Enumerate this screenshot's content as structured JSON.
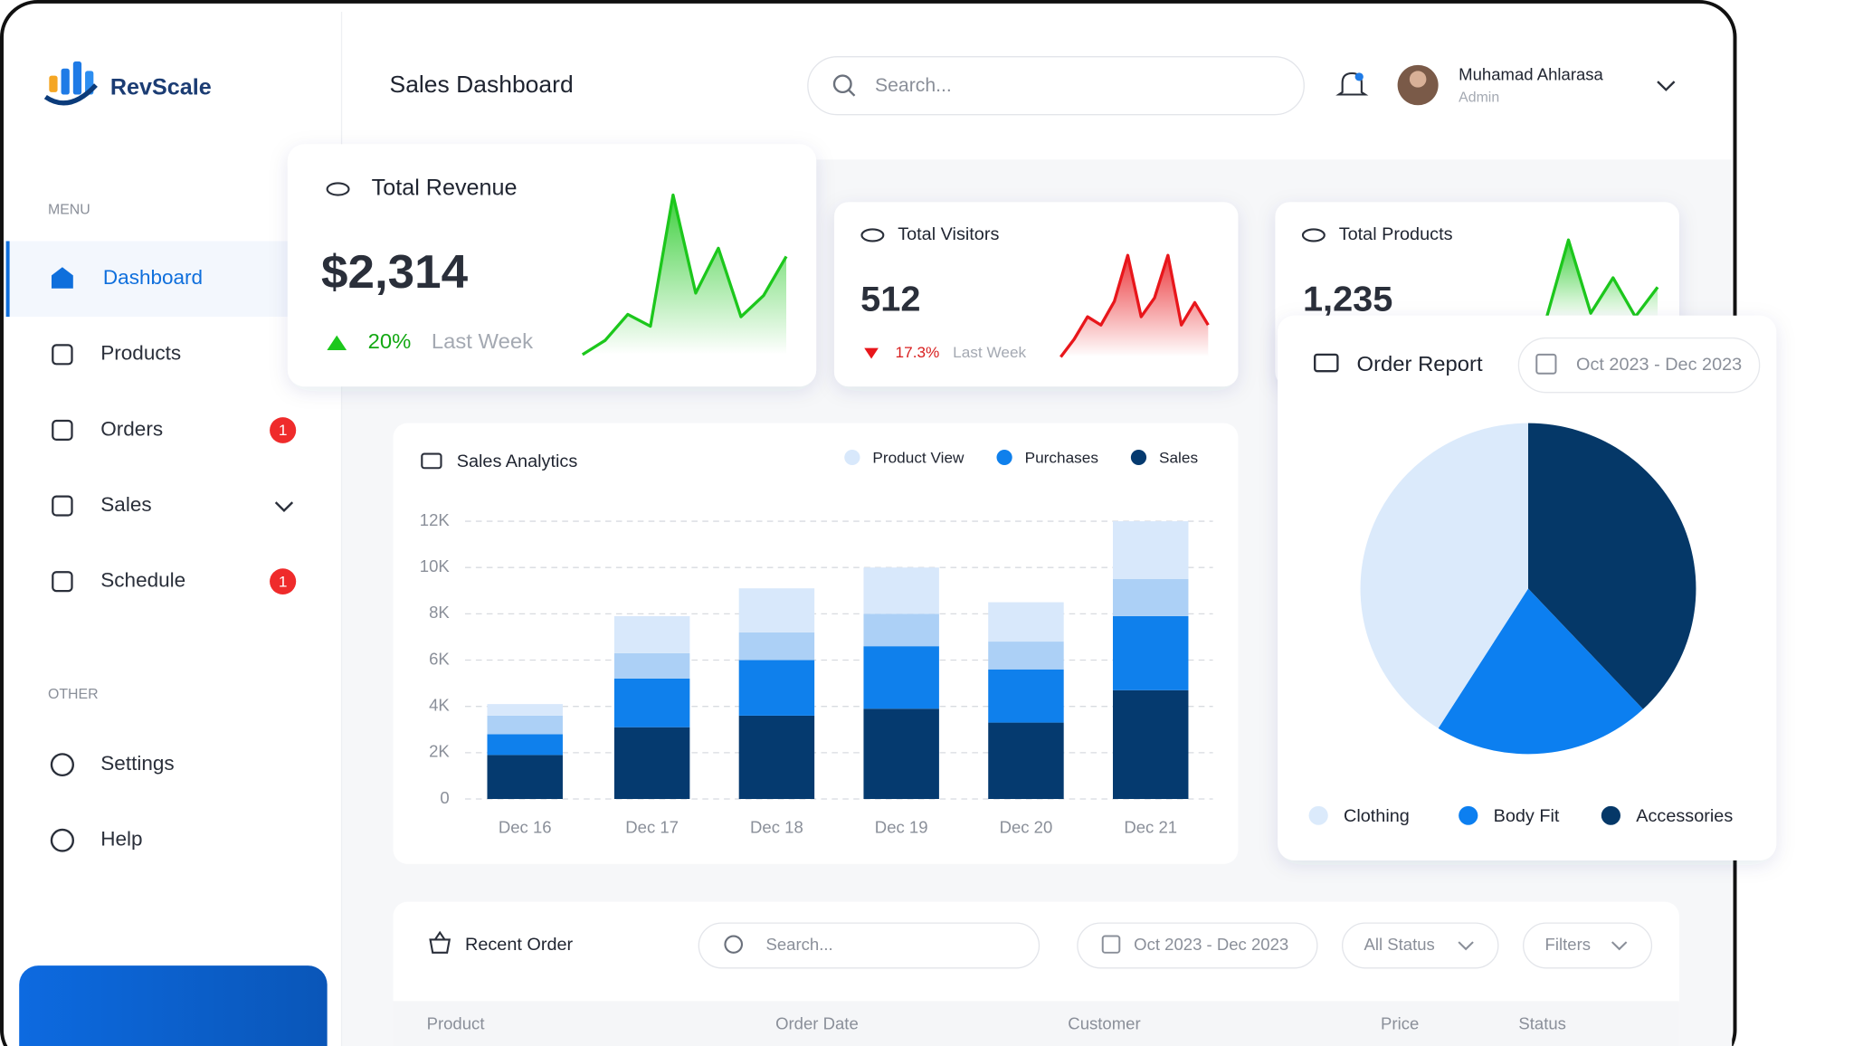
{
  "brand": "RevScale",
  "header": {
    "title": "Sales Dashboard",
    "search_placeholder": "Search...",
    "user_name": "Muhamad Ahlarasa",
    "user_role": "Admin"
  },
  "sidebar": {
    "menu_label": "MENU",
    "items": [
      {
        "label": "Dashboard"
      },
      {
        "label": "Products"
      },
      {
        "label": "Orders",
        "badge": 1
      },
      {
        "label": "Sales"
      },
      {
        "label": "Schedule",
        "badge": 1
      }
    ],
    "other_label": "OTHER",
    "other_items": [
      "Settings",
      "Help"
    ]
  },
  "stats": [
    {
      "title": "Total Revenue",
      "value": "$2,314",
      "change": "20%",
      "trend": "up",
      "period": "Last Week",
      "color": "#1cc71c",
      "spark": [
        0,
        12,
        34,
        24,
        135,
        52,
        90,
        32,
        50,
        83
      ]
    },
    {
      "title": "Total Visitors",
      "value": "512",
      "change": "17.3%",
      "trend": "down",
      "period": "Last Week",
      "color": "#e8161b",
      "spark": [
        0,
        15,
        34,
        27,
        47,
        86,
        34,
        50,
        86,
        27,
        46,
        27
      ]
    },
    {
      "title": "Total Products",
      "value": "1,235",
      "color": "#1cc71c",
      "spark": [
        0,
        67,
        5,
        35,
        2,
        27
      ]
    }
  ],
  "chart_data": [
    {
      "type": "bar",
      "title": "Sales Analytics",
      "stacked": true,
      "categories": [
        "Dec 16",
        "Dec 17",
        "Dec 18",
        "Dec 19",
        "Dec 20",
        "Dec 21"
      ],
      "series": [
        {
          "name": "Sales",
          "color": "#053a6f",
          "values": [
            1900,
            3100,
            3600,
            3900,
            3300,
            4700
          ]
        },
        {
          "name": "Purchases",
          "color": "#0f80ec",
          "values": [
            900,
            2100,
            2400,
            2700,
            2300,
            3200
          ]
        },
        {
          "name": null,
          "color": "#acd0f6",
          "values": [
            800,
            1100,
            1200,
            1400,
            1200,
            1600
          ]
        },
        {
          "name": "Product View",
          "color": "#d8e8fb",
          "values": [
            500,
            1600,
            1900,
            2000,
            1700,
            2500
          ]
        }
      ],
      "ylim": [
        0,
        12000
      ],
      "yticks": [
        0,
        {
          "value": 2000,
          "label": "2K"
        },
        {
          "value": 4000,
          "label": "4K"
        },
        {
          "value": 6000,
          "label": "6K"
        },
        {
          "value": 8000,
          "label": "8K"
        },
        {
          "value": 10000,
          "label": "10K"
        },
        {
          "value": 12000,
          "label": "12K"
        }
      ],
      "grid": true
    },
    {
      "type": "pie",
      "title": "Order Report",
      "date_range": "Oct 2023 - Dec 2023",
      "categories": [
        "Clothing",
        "Body Fit",
        "Accessories"
      ],
      "values": [
        41,
        21,
        38
      ],
      "colors": [
        "#dbeafb",
        "#0c7ff0",
        "#053868"
      ]
    }
  ],
  "recent_order": {
    "title": "Recent Order",
    "search_placeholder": "Search...",
    "date_range": "Oct 2023 - Dec 2023",
    "status_filter": "All Status",
    "filters": "Filters",
    "columns": [
      "Product",
      "Order Date",
      "Customer",
      "Price",
      "Status"
    ]
  }
}
